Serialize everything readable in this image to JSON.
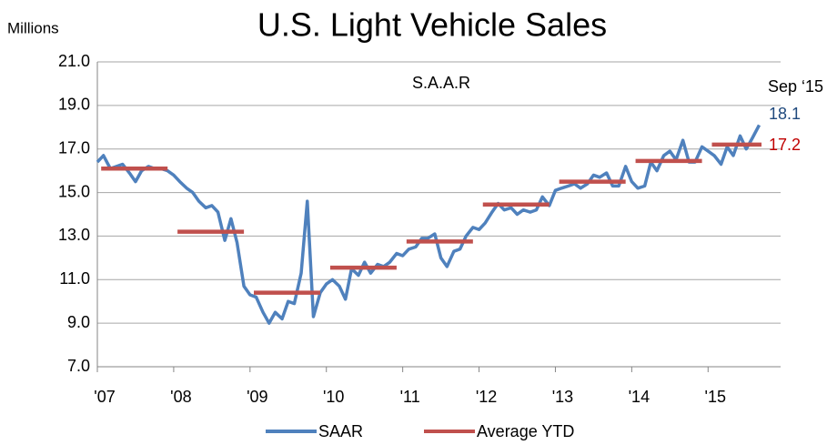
{
  "chart_data": {
    "type": "line",
    "title": "U.S. Light Vehicle Sales",
    "y_label": "Millions",
    "annotations": [
      {
        "text": "S.A.A.R",
        "color": "#000000"
      },
      {
        "text": "Sep ‘15",
        "color": "#000000"
      },
      {
        "text": "18.1",
        "color": "#1f497d"
      },
      {
        "text": "17.2",
        "color": "#c00000"
      }
    ],
    "x": [
      2007.0,
      2007.08,
      2007.17,
      2007.25,
      2007.33,
      2007.42,
      2007.5,
      2007.58,
      2007.67,
      2007.75,
      2007.83,
      2007.92,
      2008.0,
      2008.08,
      2008.17,
      2008.25,
      2008.33,
      2008.42,
      2008.5,
      2008.58,
      2008.67,
      2008.75,
      2008.83,
      2008.92,
      2009.0,
      2009.08,
      2009.17,
      2009.25,
      2009.33,
      2009.42,
      2009.5,
      2009.58,
      2009.67,
      2009.75,
      2009.83,
      2009.92,
      2010.0,
      2010.08,
      2010.17,
      2010.25,
      2010.33,
      2010.42,
      2010.5,
      2010.58,
      2010.67,
      2010.75,
      2010.83,
      2010.92,
      2011.0,
      2011.08,
      2011.17,
      2011.25,
      2011.33,
      2011.42,
      2011.5,
      2011.58,
      2011.67,
      2011.75,
      2011.83,
      2011.92,
      2012.0,
      2012.08,
      2012.17,
      2012.25,
      2012.33,
      2012.42,
      2012.5,
      2012.58,
      2012.67,
      2012.75,
      2012.83,
      2012.92,
      2013.0,
      2013.08,
      2013.17,
      2013.25,
      2013.33,
      2013.42,
      2013.5,
      2013.58,
      2013.67,
      2013.75,
      2013.83,
      2013.92,
      2014.0,
      2014.08,
      2014.17,
      2014.25,
      2014.33,
      2014.42,
      2014.5,
      2014.58,
      2014.67,
      2014.75,
      2014.83,
      2014.92,
      2015.0,
      2015.08,
      2015.17,
      2015.25,
      2015.33,
      2015.42,
      2015.5,
      2015.58,
      2015.67
    ],
    "series": [
      {
        "name": "SAAR",
        "color": "#4f81bd",
        "values": [
          16.4,
          16.7,
          16.1,
          16.2,
          16.3,
          15.9,
          15.5,
          16.0,
          16.2,
          16.1,
          16.1,
          16.0,
          15.8,
          15.5,
          15.2,
          15.0,
          14.6,
          14.3,
          14.4,
          14.1,
          12.8,
          13.8,
          12.7,
          10.7,
          10.3,
          10.2,
          9.5,
          9.0,
          9.5,
          9.2,
          10.0,
          9.9,
          11.3,
          14.6,
          9.3,
          10.4,
          10.8,
          11.0,
          10.7,
          10.1,
          11.5,
          11.2,
          11.8,
          11.3,
          11.7,
          11.6,
          11.8,
          12.2,
          12.1,
          12.4,
          12.5,
          12.9,
          12.9,
          13.1,
          12.0,
          11.6,
          12.3,
          12.4,
          13.0,
          13.4,
          13.3,
          13.6,
          14.1,
          14.5,
          14.2,
          14.3,
          14.0,
          14.2,
          14.1,
          14.2,
          14.8,
          14.4,
          15.1,
          15.2,
          15.3,
          15.4,
          15.2,
          15.4,
          15.8,
          15.7,
          15.9,
          15.3,
          15.3,
          16.2,
          15.5,
          15.2,
          15.3,
          16.4,
          16.0,
          16.7,
          16.9,
          16.5,
          17.4,
          16.4,
          16.4,
          17.1,
          16.9,
          16.7,
          16.3,
          17.1,
          16.7,
          17.6,
          17.0,
          17.5,
          18.1
        ]
      },
      {
        "name": "Average YTD",
        "color": "#c0504d",
        "segments": [
          {
            "x": [
              2007.05,
              2007.92
            ],
            "value": 16.1
          },
          {
            "x": [
              2008.05,
              2008.92
            ],
            "value": 13.2
          },
          {
            "x": [
              2009.05,
              2009.92
            ],
            "value": 10.4
          },
          {
            "x": [
              2010.05,
              2010.92
            ],
            "value": 11.55
          },
          {
            "x": [
              2011.05,
              2011.92
            ],
            "value": 12.75
          },
          {
            "x": [
              2012.05,
              2012.92
            ],
            "value": 14.45
          },
          {
            "x": [
              2013.05,
              2013.92
            ],
            "value": 15.5
          },
          {
            "x": [
              2014.05,
              2014.92
            ],
            "value": 16.45
          },
          {
            "x": [
              2015.05,
              2015.7
            ],
            "value": 17.2
          }
        ]
      }
    ],
    "xlim": [
      2007,
      2015.95
    ],
    "xticks": [
      {
        "value": 2007,
        "label": "'07"
      },
      {
        "value": 2008,
        "label": "'08"
      },
      {
        "value": 2009,
        "label": "'09"
      },
      {
        "value": 2010,
        "label": "'10"
      },
      {
        "value": 2011,
        "label": "'11"
      },
      {
        "value": 2012,
        "label": "'12"
      },
      {
        "value": 2013,
        "label": "'13"
      },
      {
        "value": 2014,
        "label": "'14"
      },
      {
        "value": 2015,
        "label": "'15"
      }
    ],
    "ylim": [
      7,
      21
    ],
    "yticks": [
      {
        "value": 7,
        "label": "7.0"
      },
      {
        "value": 9,
        "label": "9.0"
      },
      {
        "value": 11,
        "label": "11.0"
      },
      {
        "value": 13,
        "label": "13.0"
      },
      {
        "value": 15,
        "label": "15.0"
      },
      {
        "value": 17,
        "label": "17.0"
      },
      {
        "value": 19,
        "label": "19.0"
      },
      {
        "value": 21,
        "label": "21.0"
      }
    ],
    "grid": true,
    "legend": "bottom"
  }
}
